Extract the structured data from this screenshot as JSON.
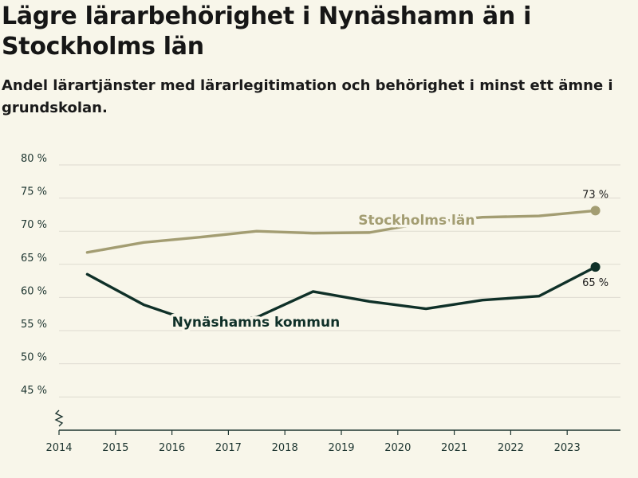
{
  "header": {
    "title": "Lägre lärarbehörighet i Nynäshamn än i Stockholms län",
    "subtitle": "Andel lärartjänster med lärarlegitimation och behörighet i minst ett ämne i grundskolan."
  },
  "colors": {
    "background": "#f8f6ea",
    "stockholm": "#a39d72",
    "nynashamn": "#0f3028",
    "grid": "#dedbd0",
    "axis": "#1d3530"
  },
  "chart_data": {
    "type": "line",
    "x_ticks": [
      "2014",
      "2015",
      "2016",
      "2017",
      "2018",
      "2019",
      "2020",
      "2021",
      "2022",
      "2023"
    ],
    "y_ticks": [
      "45 %",
      "50 %",
      "55 %",
      "60 %",
      "65 %",
      "70 %",
      "75 %",
      "80 %"
    ],
    "y_tick_values": [
      45,
      50,
      55,
      60,
      65,
      70,
      75,
      80
    ],
    "xlim": [
      2014,
      2024
    ],
    "ylim": [
      40,
      80
    ],
    "axis_break": true,
    "series": [
      {
        "name": "Stockholms län",
        "color_key": "stockholm",
        "x": [
          2014.5,
          2015.5,
          2016.5,
          2017.5,
          2018.5,
          2019.5,
          2020.5,
          2021.5,
          2022.5,
          2023.5
        ],
        "values": [
          66.8,
          68.3,
          69.1,
          70.0,
          69.7,
          69.8,
          71.3,
          72.1,
          72.3,
          73.1
        ],
        "end_label": "73 %",
        "label_anchor": [
          2019.3,
          71.0
        ]
      },
      {
        "name": "Nynäshamns kommun",
        "color_key": "nynashamn",
        "x": [
          2014.5,
          2015.5,
          2016.5,
          2017.5,
          2018.5,
          2019.5,
          2020.5,
          2021.5,
          2022.5,
          2023.5
        ],
        "values": [
          63.5,
          58.9,
          56.0,
          57.0,
          60.9,
          59.4,
          58.3,
          59.6,
          60.2,
          64.6
        ],
        "end_label": "65 %",
        "label_anchor": [
          2016.0,
          55.6
        ]
      }
    ]
  }
}
